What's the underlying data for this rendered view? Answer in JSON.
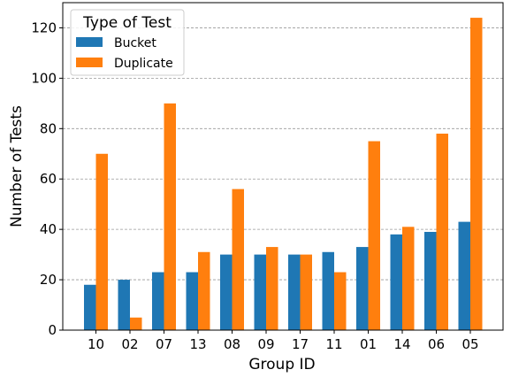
{
  "chart_data": {
    "type": "bar",
    "title": "",
    "xlabel": "Group ID",
    "ylabel": "Number of Tests",
    "categories": [
      "10",
      "02",
      "07",
      "13",
      "08",
      "09",
      "17",
      "11",
      "01",
      "14",
      "06",
      "05"
    ],
    "series": [
      {
        "name": "Bucket",
        "color": "#1f77b4",
        "values": [
          18,
          20,
          23,
          23,
          30,
          30,
          30,
          31,
          33,
          38,
          39,
          43
        ]
      },
      {
        "name": "Duplicate",
        "color": "#ff7f0e",
        "values": [
          70,
          5,
          90,
          31,
          56,
          33,
          30,
          23,
          75,
          41,
          78,
          124
        ]
      }
    ],
    "ylim": [
      0,
      130
    ],
    "yticks": [
      0,
      20,
      40,
      60,
      80,
      100,
      120
    ],
    "grid": "horizontal dashed",
    "legend": {
      "title": "Type of Test",
      "placement": "top-left"
    }
  }
}
